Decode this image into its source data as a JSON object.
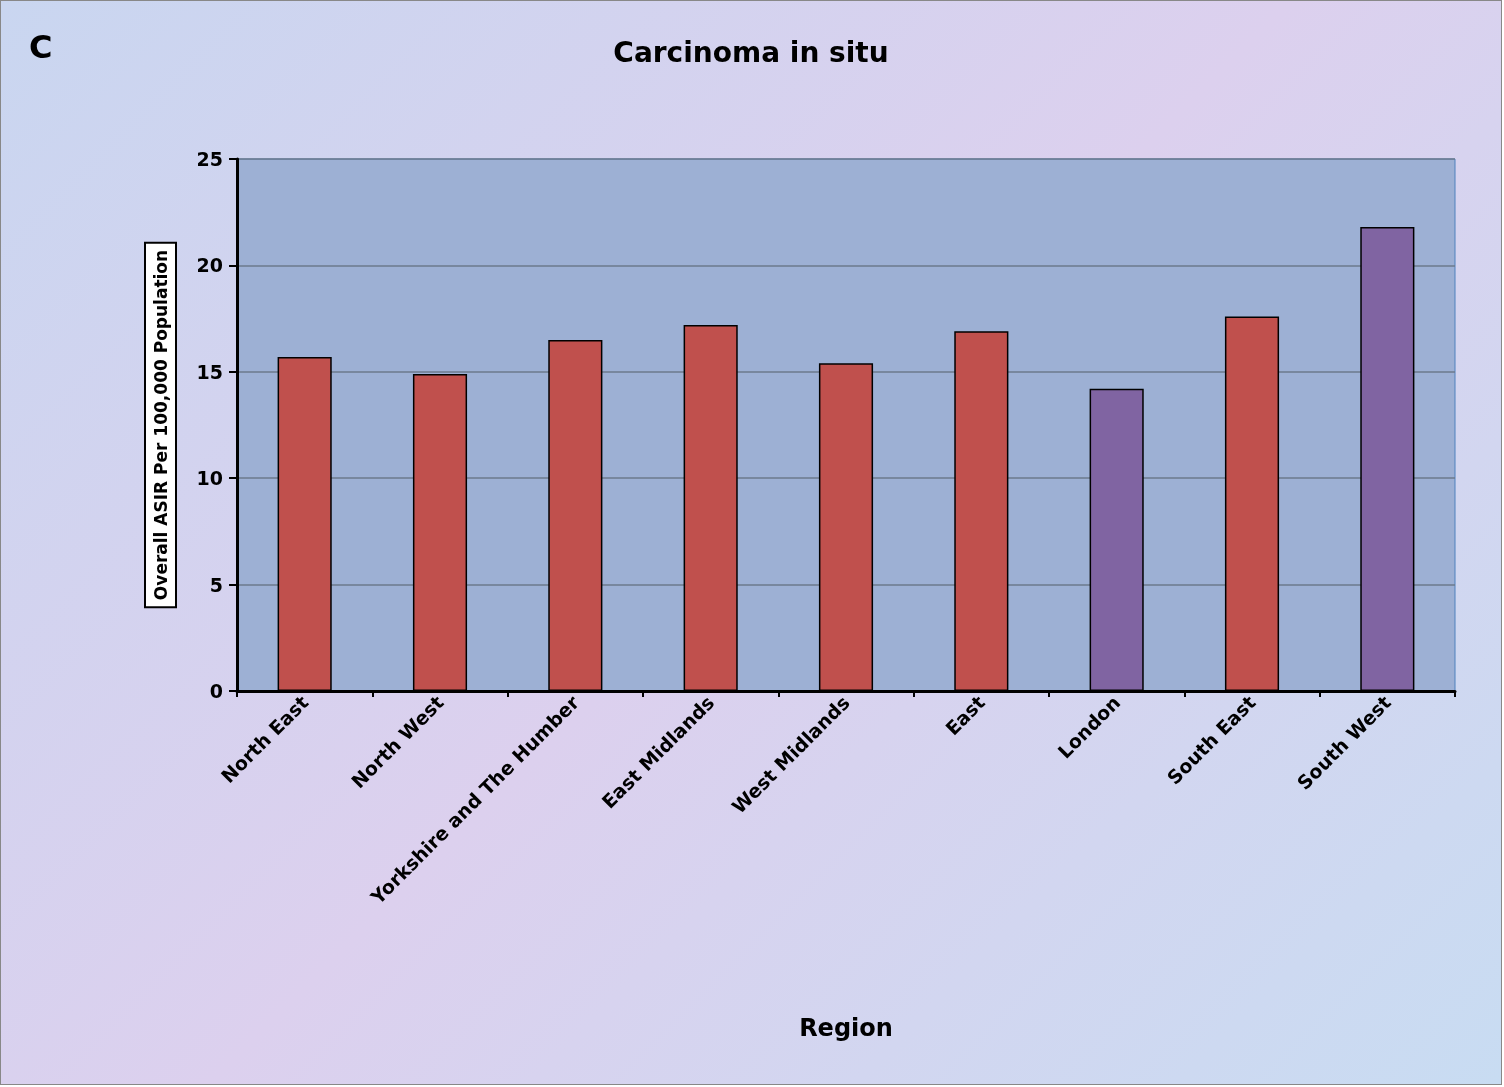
{
  "chart_data": {
    "type": "bar",
    "title": "Carcinoma in situ",
    "xlabel": "Region",
    "ylabel": "Overall ASIR Per 100,000 Population",
    "annotations": [
      "C"
    ],
    "categories": [
      "North East",
      "North West",
      "Yorkshire and The Humber",
      "East Midlands",
      "West Midlands",
      "East",
      "London",
      "South East",
      "South West"
    ],
    "values": [
      15.7,
      14.9,
      16.5,
      17.2,
      15.4,
      16.9,
      14.2,
      17.6,
      21.8
    ],
    "colors": [
      "#c0504d",
      "#c0504d",
      "#c0504d",
      "#c0504d",
      "#c0504d",
      "#c0504d",
      "#8064a2",
      "#c0504d",
      "#8064a2"
    ],
    "ylim": [
      0,
      25
    ],
    "yticks": [
      0,
      5,
      10,
      15,
      20,
      25
    ],
    "grid": "y"
  }
}
